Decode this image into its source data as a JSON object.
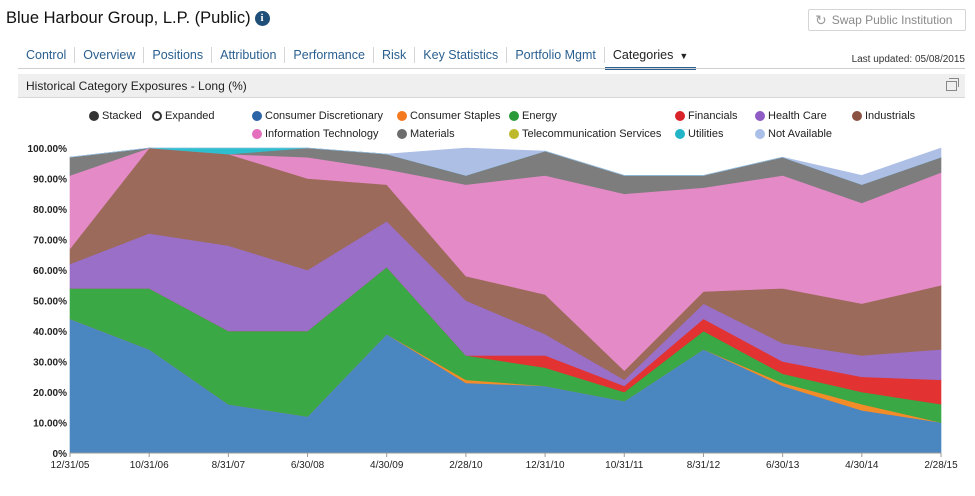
{
  "header": {
    "title": "Blue Harbour Group, L.P. (Public)",
    "info_icon": "info-icon",
    "swap_label": "Swap Public Institution",
    "swap_icon": "refresh-icon"
  },
  "tabs": [
    "Control",
    "Overview",
    "Positions",
    "Attribution",
    "Performance",
    "Risk",
    "Key Statistics",
    "Portfolio Mgmt",
    "Categories"
  ],
  "active_tab": "Categories",
  "last_updated": "Last updated: 05/08/2015",
  "panel": {
    "title": "Historical Category Exposures - Long (%)",
    "window_icon": "window-icon"
  },
  "view_modes": {
    "stacked": "Stacked",
    "expanded": "Expanded",
    "selected": "Stacked"
  },
  "chart_data": {
    "type": "area",
    "title": "Historical Category Exposures - Long (%)",
    "stacked": true,
    "ylim": [
      0,
      100
    ],
    "yticks": [
      "0%",
      "10.00%",
      "20.00%",
      "30.00%",
      "40.00%",
      "50.00%",
      "60.00%",
      "70.00%",
      "80.00%",
      "90.00%",
      "100.00%"
    ],
    "xticks": [
      "12/31/05",
      "10/31/06",
      "8/31/07",
      "6/30/08",
      "4/30/09",
      "2/28/10",
      "12/31/10",
      "10/31/11",
      "8/31/12",
      "6/30/13",
      "4/30/14",
      "2/28/15"
    ],
    "x": [
      "12/31/05",
      "10/31/06",
      "8/31/07",
      "6/30/08",
      "4/30/09",
      "2/28/10",
      "12/31/10",
      "10/31/11",
      "8/31/12",
      "6/30/13",
      "4/30/14",
      "2/28/15"
    ],
    "legend_position": "top",
    "series": [
      {
        "name": "Consumer Discretionary",
        "color": "#4a86c0",
        "values": [
          44,
          34,
          16,
          12,
          39,
          23,
          22,
          17,
          34,
          22,
          14,
          10
        ]
      },
      {
        "name": "Consumer Staples",
        "color": "#f28c28",
        "values": [
          0,
          0,
          0,
          0,
          0,
          1,
          0,
          0,
          0,
          1,
          2,
          0
        ]
      },
      {
        "name": "Energy",
        "color": "#3aa845",
        "values": [
          10,
          20,
          24,
          28,
          22,
          8,
          6,
          3,
          6,
          3,
          4,
          6
        ]
      },
      {
        "name": "Financials",
        "color": "#e23232",
        "values": [
          0,
          0,
          0,
          0,
          0,
          0,
          4,
          2,
          4,
          4,
          5,
          8
        ]
      },
      {
        "name": "Health Care",
        "color": "#9a6fc7",
        "values": [
          8,
          18,
          28,
          20,
          15,
          18,
          7,
          2,
          5,
          6,
          7,
          10
        ]
      },
      {
        "name": "Industrials",
        "color": "#9c6a5a",
        "values": [
          5,
          28,
          30,
          30,
          12,
          8,
          13,
          3,
          4,
          18,
          17,
          21
        ]
      },
      {
        "name": "Information Technology",
        "color": "#e48ac6",
        "values": [
          24,
          0,
          0,
          7,
          5,
          30,
          39,
          58,
          34,
          37,
          33,
          37
        ]
      },
      {
        "name": "Materials",
        "color": "#7d7d7d",
        "values": [
          6,
          0,
          0,
          3,
          5,
          3,
          8,
          6,
          4,
          6,
          6,
          5
        ]
      },
      {
        "name": "Telecommunication Services",
        "color": "#c5c22c",
        "values": [
          0,
          0,
          0,
          0,
          0,
          0,
          0,
          0,
          0,
          0,
          0,
          0
        ]
      },
      {
        "name": "Utilities",
        "color": "#2ebfcf",
        "values": [
          0,
          0,
          2,
          0,
          0,
          0,
          0,
          0,
          0,
          0,
          0,
          0
        ]
      },
      {
        "name": "Not Available",
        "color": "#aebfe6",
        "values": [
          0,
          0,
          0,
          0,
          0,
          9,
          0,
          0,
          0,
          0,
          3,
          3
        ]
      }
    ]
  }
}
